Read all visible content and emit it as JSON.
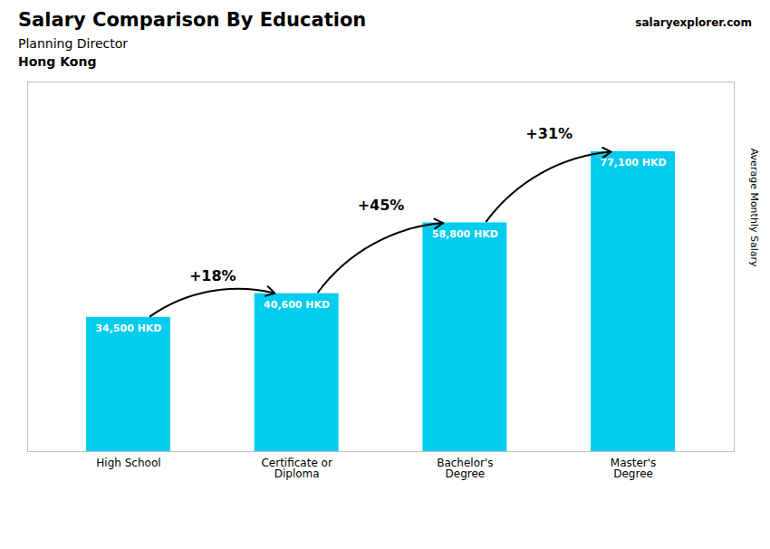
{
  "chart_data": {
    "type": "bar",
    "title": "Salary Comparison By Education",
    "subtitle": "Planning Director",
    "location": "Hong Kong",
    "source": [
      "salary",
      "explorer.com"
    ],
    "ylabel": "Average Monthly Salary",
    "categories": [
      "High School",
      "Certificate or\nDiploma",
      "Bachelor's\nDegree",
      "Master's\nDegree"
    ],
    "values": [
      34500,
      40600,
      58800,
      77100
    ],
    "value_labels": [
      "34,500 HKD",
      "40,600 HKD",
      "58,800 HKD",
      "77,100 HKD"
    ],
    "data_labels": true,
    "annotations": [
      "+18%",
      "+45%",
      "+31%"
    ],
    "color": "#00CCEE",
    "ylim": [
      0,
      95000
    ],
    "tick_labels": "x",
    "grid": false
  }
}
